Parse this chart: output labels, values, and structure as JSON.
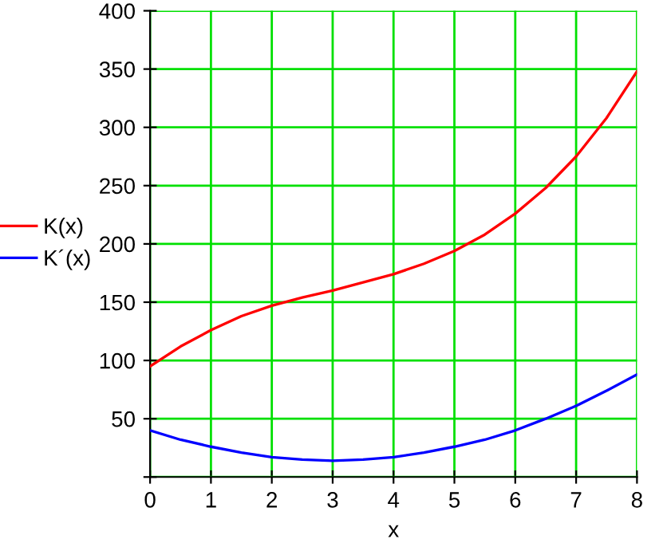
{
  "chart_data": {
    "type": "line",
    "xlabel": "x",
    "series": [
      {
        "name": "K(x)",
        "color": "#ff0000",
        "x": [
          0,
          0.5,
          1,
          1.5,
          2,
          2.5,
          3,
          3.5,
          4,
          4.5,
          5,
          5.5,
          6,
          6.5,
          7,
          7.5,
          8
        ],
        "values": [
          95,
          112,
          126,
          138,
          147,
          154,
          160,
          167,
          174,
          183,
          194,
          208,
          226,
          248,
          275,
          308,
          348
        ]
      },
      {
        "name": "K´(x)",
        "color": "#0000ff",
        "x": [
          0,
          0.5,
          1,
          1.5,
          2,
          2.5,
          3,
          3.5,
          4,
          4.5,
          5,
          5.5,
          6,
          6.5,
          7,
          7.5,
          8
        ],
        "values": [
          40,
          32,
          26,
          21,
          17,
          15,
          14,
          15,
          17,
          21,
          26,
          32,
          40,
          50,
          61,
          74,
          88
        ]
      }
    ],
    "xlim": [
      0,
      8
    ],
    "ylim": [
      0,
      400
    ],
    "xticks": [
      0,
      1,
      2,
      3,
      4,
      5,
      6,
      7,
      8
    ],
    "yticks": [
      {
        "value": 0,
        "label": null
      },
      50,
      100,
      150,
      200,
      250,
      300,
      350,
      400
    ],
    "grid": true,
    "legend": "left",
    "marker": "none",
    "line_style": "solid"
  }
}
